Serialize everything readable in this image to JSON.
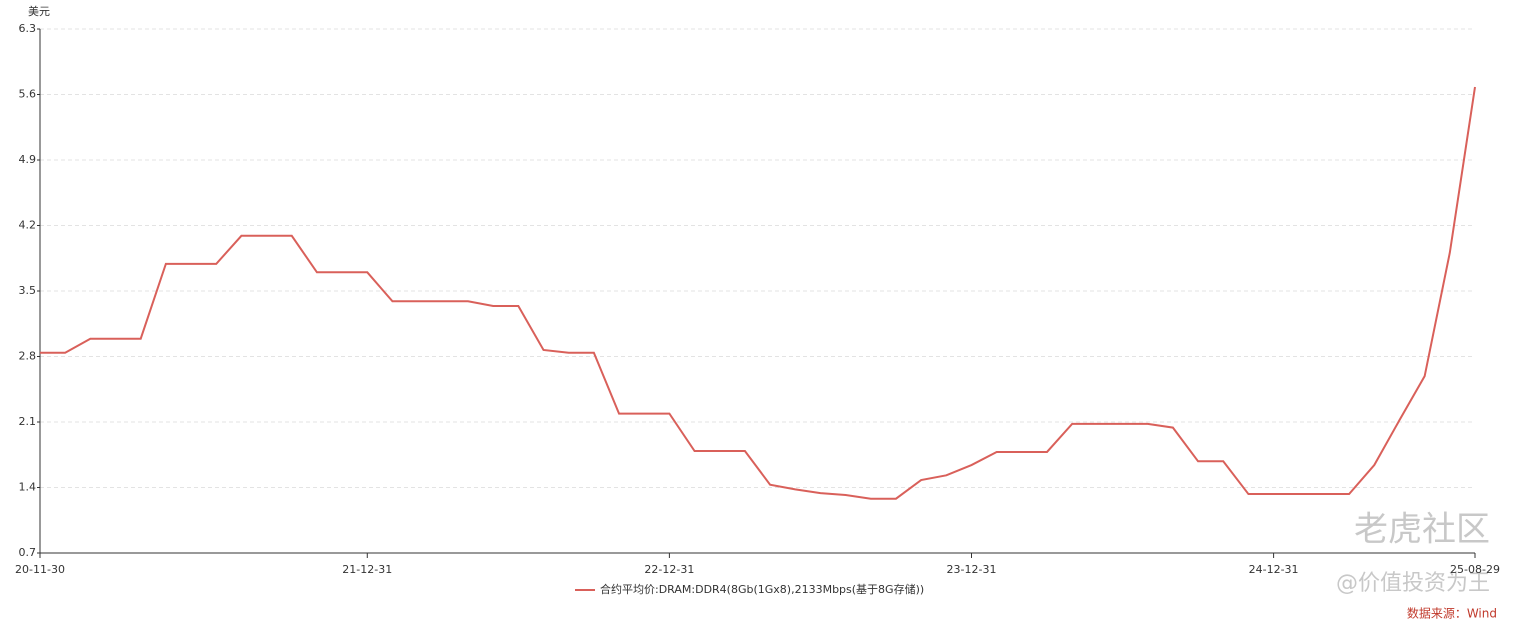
{
  "chart_data": {
    "type": "line",
    "y_unit": "美元",
    "categories": [
      "20-11-30",
      null,
      null,
      null,
      null,
      null,
      null,
      null,
      null,
      null,
      null,
      null,
      null,
      "21-12-31",
      null,
      null,
      null,
      null,
      null,
      null,
      null,
      null,
      null,
      null,
      null,
      "22-12-31",
      null,
      null,
      null,
      null,
      null,
      null,
      null,
      null,
      null,
      null,
      null,
      "23-12-31",
      null,
      null,
      null,
      null,
      null,
      null,
      null,
      null,
      null,
      null,
      null,
      "24-12-31",
      null,
      null,
      null,
      null,
      null,
      null,
      null,
      "25-08-29"
    ],
    "series": [
      {
        "name": "合约平均价:DRAM:DDR4(8Gb(1Gx8),2133Mbps(基于8G存储))",
        "color": "#d9605a",
        "values": [
          2.84,
          2.84,
          2.99,
          2.99,
          2.99,
          3.79,
          3.79,
          3.79,
          4.09,
          4.09,
          4.09,
          3.7,
          3.7,
          3.7,
          3.39,
          3.39,
          3.39,
          3.39,
          3.34,
          3.34,
          2.87,
          2.84,
          2.84,
          2.19,
          2.19,
          2.19,
          1.79,
          1.79,
          1.79,
          1.43,
          1.38,
          1.34,
          1.32,
          1.28,
          1.28,
          1.48,
          1.53,
          1.64,
          1.78,
          1.78,
          1.78,
          2.08,
          2.08,
          2.08,
          2.08,
          2.04,
          1.68,
          1.68,
          1.33,
          1.33,
          1.33,
          1.33,
          1.33,
          1.64,
          2.12,
          2.59,
          3.91,
          5.68
        ]
      }
    ],
    "ylim": [
      0.7,
      6.3
    ],
    "yticks": [
      0.7,
      1.4,
      2.1,
      2.8,
      3.5,
      4.2,
      4.9,
      5.6,
      6.3
    ],
    "grid": true,
    "legend": "bottom",
    "source": "数据来源：Wind",
    "watermark": [
      "老虎社区",
      "@价值投资为王"
    ]
  }
}
